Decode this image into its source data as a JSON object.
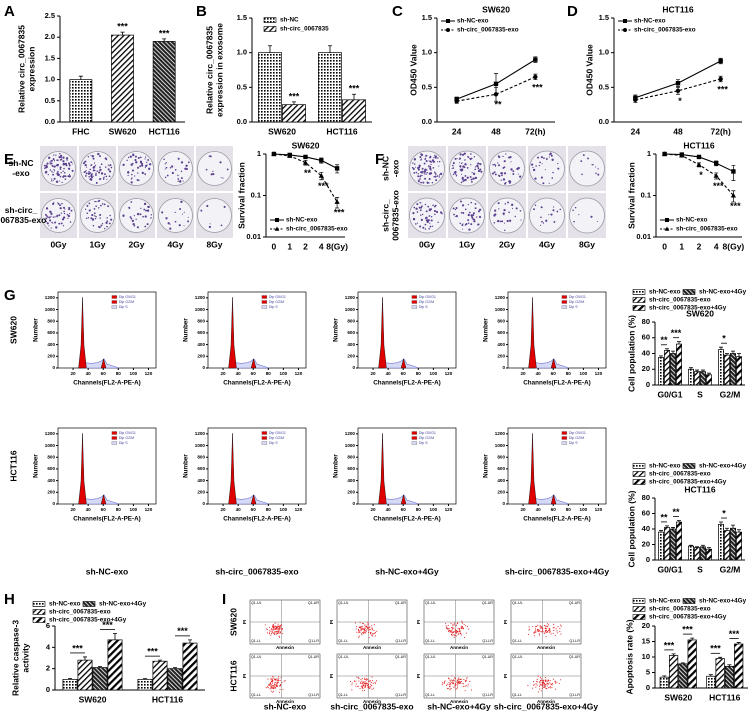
{
  "chart_data": [
    {
      "type": "bar",
      "panel_label": "A",
      "ylabel": [
        "Relative circ_0067835",
        "expression"
      ],
      "categories": [
        "FHC",
        "SW620",
        "HCT116"
      ],
      "series": [
        {
          "values": [
            1.0,
            2.05,
            1.9
          ],
          "errors": [
            0.08,
            0.07,
            0.06
          ],
          "color": "#000000",
          "pattern": [
            "dots",
            "hatch",
            "dense"
          ],
          "significance": [
            null,
            "***",
            "***"
          ]
        }
      ],
      "ylim": [
        0,
        2.5
      ],
      "yticks": [
        {
          "value": 0,
          "label": "0.0"
        },
        {
          "value": 0.5,
          "label": "0.5"
        },
        {
          "value": 1,
          "label": "1.0"
        },
        {
          "value": 1.5,
          "label": "1.5"
        },
        {
          "value": 2,
          "label": "2.0"
        },
        {
          "value": 2.5,
          "label": "2.5"
        }
      ]
    },
    {
      "type": "bar",
      "panel_label": "B",
      "ylabel": [
        "Relative circ_0067835",
        "expression in exosome"
      ],
      "categories": [
        "SW620",
        "HCT116"
      ],
      "series": [
        {
          "name": "sh-NC",
          "values": [
            1.0,
            1.0
          ],
          "errors": [
            0.1,
            0.1
          ],
          "color": "#000000",
          "pattern": "dots",
          "significance": [
            null,
            null
          ]
        },
        {
          "name": "sh-circ_0067835",
          "values": [
            0.25,
            0.32
          ],
          "errors": [
            0.04,
            0.08
          ],
          "color": "#000000",
          "pattern": "hatch",
          "significance": [
            "***",
            "***"
          ]
        }
      ],
      "legend": "upper right",
      "ylim": [
        0,
        1.5
      ],
      "yticks": [
        {
          "value": 0,
          "label": "0.0"
        },
        {
          "value": 0.5,
          "label": "0.5"
        },
        {
          "value": 1,
          "label": "1.0"
        },
        {
          "value": 1.5,
          "label": "1.5"
        }
      ]
    },
    {
      "type": "line",
      "panel_label": "C",
      "title": "SW620",
      "ylabel": [
        "OD450 Value"
      ],
      "categories": [
        "24",
        "48",
        "72(h)"
      ],
      "series": [
        {
          "name": "sh-NC-exo",
          "values": [
            0.33,
            0.55,
            0.9
          ],
          "errors": [
            0.03,
            0.15,
            0.04
          ],
          "color": "#000000",
          "marker": "square",
          "dash": false,
          "significance": [
            null,
            null,
            null
          ]
        },
        {
          "name": "sh-circ_0067835-exo",
          "values": [
            0.3,
            0.4,
            0.65
          ],
          "errors": [
            0.03,
            0.1,
            0.04
          ],
          "color": "#000000",
          "marker": "circle",
          "dash": true,
          "significance": [
            null,
            "**",
            "***"
          ]
        }
      ],
      "legend": "upper left",
      "ylim": [
        0,
        1.5
      ],
      "yticks": [
        {
          "value": 0,
          "label": "0.0"
        },
        {
          "value": 0.5,
          "label": "0.5"
        },
        {
          "value": 1,
          "label": "1.0"
        },
        {
          "value": 1.5,
          "label": "1.5"
        }
      ]
    },
    {
      "type": "line",
      "panel_label": "D",
      "title": "HCT116",
      "ylabel": [
        "OD450 Value"
      ],
      "categories": [
        "24",
        "48",
        "72(h)"
      ],
      "series": [
        {
          "name": "sh-NC-exo",
          "values": [
            0.35,
            0.56,
            0.88
          ],
          "errors": [
            0.04,
            0.05,
            0.04
          ],
          "color": "#000000",
          "marker": "square",
          "dash": false,
          "significance": [
            null,
            null,
            null
          ]
        },
        {
          "name": "sh-circ_0067835-exo",
          "values": [
            0.32,
            0.45,
            0.62
          ],
          "errors": [
            0.04,
            0.05,
            0.04
          ],
          "color": "#000000",
          "marker": "circle",
          "dash": true,
          "significance": [
            null,
            "*",
            "***"
          ]
        }
      ],
      "legend": "upper left",
      "ylim": [
        0,
        1.5
      ],
      "yticks": [
        {
          "value": 0,
          "label": "0.0"
        },
        {
          "value": 0.5,
          "label": "0.5"
        },
        {
          "value": 1,
          "label": "1.0"
        },
        {
          "value": 1.5,
          "label": "1.5"
        }
      ]
    },
    {
      "type": "line",
      "panel_label": "E",
      "title": "SW620",
      "ylabel": [
        "Survival fraction"
      ],
      "log": true,
      "categories": [
        "0",
        "1",
        "2",
        "4",
        "8(Gy)"
      ],
      "series": [
        {
          "name": "sh-NC-exo",
          "values": [
            1,
            0.95,
            0.85,
            0.7,
            0.45
          ],
          "errors": [
            0,
            0.04,
            0.06,
            0.1,
            0.1
          ],
          "color": "#000000",
          "marker": "square",
          "dash": false,
          "significance": [
            null,
            null,
            null,
            null,
            null
          ]
        },
        {
          "name": "sh-circ_0067835-exo",
          "values": [
            1,
            0.9,
            0.62,
            0.3,
            0.07
          ],
          "errors": [
            0,
            0.05,
            0.08,
            0.06,
            0.02
          ],
          "color": "#000000",
          "marker": "triangle",
          "dash": true,
          "significance": [
            null,
            null,
            "**",
            "***",
            "***"
          ]
        }
      ],
      "legend": "lower left",
      "ylim": [
        0.01,
        1
      ],
      "yticks": [
        0.01,
        0.1,
        1
      ]
    },
    {
      "type": "line",
      "panel_label": "F",
      "title": "HCT116",
      "ylabel": [
        "Survival fraction"
      ],
      "log": true,
      "categories": [
        "0",
        "1",
        "2",
        "4",
        "8(Gy)"
      ],
      "series": [
        {
          "name": "sh-NC-exo",
          "values": [
            1,
            0.97,
            0.85,
            0.6,
            0.38
          ],
          "errors": [
            0,
            0.03,
            0.05,
            0.08,
            0.15
          ],
          "color": "#000000",
          "marker": "square",
          "dash": false,
          "significance": [
            null,
            null,
            null,
            null,
            null
          ]
        },
        {
          "name": "sh-circ_0067835-exo",
          "values": [
            1,
            0.92,
            0.55,
            0.3,
            0.1
          ],
          "errors": [
            0,
            0.04,
            0.06,
            0.05,
            0.03
          ],
          "color": "#000000",
          "marker": "triangle",
          "dash": true,
          "significance": [
            null,
            null,
            "*",
            "***",
            "***"
          ]
        }
      ],
      "legend": "lower left",
      "ylim": [
        0.01,
        1
      ],
      "yticks": [
        0.01,
        0.1,
        1
      ]
    },
    {
      "type": "bar",
      "panel_label": "G",
      "title": "SW620",
      "ylabel": [
        "Cell population (%)"
      ],
      "categories": [
        "G0/G1",
        "S",
        "G2/M"
      ],
      "series": [
        {
          "name": "sh-NC-exo",
          "values": [
            35,
            20,
            45
          ],
          "errors": [
            2,
            2,
            3
          ],
          "color": "#000000",
          "pattern": "dots",
          "significance": [
            null,
            null,
            null
          ]
        },
        {
          "name": "sh-circ_0067835-exo",
          "values": [
            44,
            17,
            38
          ],
          "errors": [
            2,
            2,
            2
          ],
          "color": "#000000",
          "pattern": "hatch",
          "significance": [
            "**",
            null,
            "*"
          ]
        },
        {
          "name": "sh-NC-exo+4Gy",
          "values": [
            40,
            17,
            40
          ],
          "errors": [
            3,
            2,
            3
          ],
          "color": "#000000",
          "pattern": "dense",
          "significance": [
            null,
            null,
            null
          ]
        },
        {
          "name": "sh-circ_0067835-exo+4Gy",
          "values": [
            52,
            13,
            36
          ],
          "errors": [
            3,
            2,
            4
          ],
          "color": "#000000",
          "pattern": "hatch2",
          "significance": [
            "***",
            null,
            null
          ]
        }
      ],
      "legend": "top",
      "brackets": true,
      "ylim": [
        0,
        80
      ],
      "yticks": [
        0,
        20,
        40,
        60,
        80
      ]
    },
    {
      "type": "bar",
      "title": "HCT116",
      "ylabel": [
        "Cell population (%)"
      ],
      "categories": [
        "G0/G1",
        "S",
        "G2/M"
      ],
      "series": [
        {
          "name": "sh-NC-exo",
          "values": [
            36,
            18,
            46
          ],
          "errors": [
            2,
            1,
            3
          ],
          "color": "#000000",
          "pattern": "dots",
          "significance": [
            null,
            null,
            null
          ]
        },
        {
          "name": "sh-circ_0067835-exo",
          "values": [
            42,
            16,
            38
          ],
          "errors": [
            2,
            1,
            3
          ],
          "color": "#000000",
          "pattern": "hatch",
          "significance": [
            "**",
            null,
            "*"
          ]
        },
        {
          "name": "sh-NC-exo+4Gy",
          "values": [
            40,
            17,
            41
          ],
          "errors": [
            2,
            2,
            4
          ],
          "color": "#000000",
          "pattern": "dense",
          "significance": [
            null,
            null,
            null
          ]
        },
        {
          "name": "sh-circ_0067835-exo+4Gy",
          "values": [
            49,
            14,
            36
          ],
          "errors": [
            2,
            2,
            3
          ],
          "color": "#000000",
          "pattern": "hatch2",
          "significance": [
            "**",
            null,
            null
          ]
        }
      ],
      "legend": "top",
      "brackets": true,
      "ylim": [
        0,
        80
      ],
      "yticks": [
        0,
        20,
        40,
        60,
        80
      ]
    },
    {
      "type": "bar",
      "panel_label": "H",
      "ylabel": [
        "Relative caspase-3",
        "activity"
      ],
      "categories": [
        "SW620",
        "HCT116"
      ],
      "series": [
        {
          "name": "sh-NC-exo",
          "values": [
            1.0,
            1.0
          ],
          "errors": [
            0.08,
            0.06
          ],
          "color": "#000000",
          "pattern": "dots",
          "significance": [
            null,
            null
          ]
        },
        {
          "name": "sh-circ_0067835-exo",
          "values": [
            2.8,
            2.7
          ],
          "errors": [
            0.3,
            0.1
          ],
          "color": "#000000",
          "pattern": "hatch",
          "significance": [
            "***",
            "***"
          ]
        },
        {
          "name": "sh-NC-exo+4Gy",
          "values": [
            2.1,
            2.0
          ],
          "errors": [
            0.1,
            0.1
          ],
          "color": "#000000",
          "pattern": "dense",
          "significance": [
            null,
            null
          ]
        },
        {
          "name": "sh-circ_0067835-exo+4Gy",
          "values": [
            4.7,
            4.4
          ],
          "errors": [
            0.6,
            0.3
          ],
          "color": "#000000",
          "pattern": "hatch2",
          "significance": [
            "***",
            "***"
          ]
        }
      ],
      "legend": "top",
      "brackets": true,
      "ylim": [
        0,
        6
      ],
      "yticks": [
        0,
        2,
        4,
        6
      ]
    },
    {
      "type": "bar",
      "panel_label": "I",
      "ylabel": [
        "Apoptosis rate (%)"
      ],
      "categories": [
        "SW620",
        "HCT116"
      ],
      "series": [
        {
          "name": "sh-NC-exo",
          "values": [
            3.5,
            3.8
          ],
          "errors": [
            0.4,
            0.5
          ],
          "color": "#000000",
          "pattern": "dots",
          "significance": [
            null,
            null
          ]
        },
        {
          "name": "sh-circ_0067835-exo",
          "values": [
            10.5,
            9.5
          ],
          "errors": [
            0.5,
            0.4
          ],
          "color": "#000000",
          "pattern": "hatch",
          "significance": [
            "***",
            "***"
          ]
        },
        {
          "name": "sh-NC-exo+4Gy",
          "values": [
            7.8,
            7.0
          ],
          "errors": [
            0.3,
            0.5
          ],
          "color": "#000000",
          "pattern": "dense",
          "significance": [
            null,
            null
          ]
        },
        {
          "name": "sh-circ_0067835-exo+4Gy",
          "values": [
            15.5,
            14.2
          ],
          "errors": [
            0.6,
            0.5
          ],
          "color": "#000000",
          "pattern": "hatch2",
          "significance": [
            "***",
            "***"
          ]
        }
      ],
      "legend": "top",
      "brackets": true,
      "ylim": [
        0,
        20
      ],
      "yticks": [
        0,
        5,
        10,
        15,
        20
      ]
    }
  ],
  "colony_assay": {
    "row_labels": [
      [
        "sh-NC",
        "-exo"
      ],
      [
        "sh-circ_",
        "0067835-exo"
      ]
    ],
    "dose_labels": [
      "0Gy",
      "1Gy",
      "2Gy",
      "4Gy",
      "8Gy"
    ]
  },
  "cell_cycle": {
    "row_labels": [
      "SW620",
      "HCT116"
    ],
    "column_labels": [
      "sh-NC-exo",
      "sh-circ_0067835-exo",
      "sh-NC-exo+4Gy",
      "sh-circ_0067835-exo+4Gy"
    ],
    "xlabel": "Channels(FL2-A-PE-A)",
    "ylabel": "Number",
    "xlim": [
      0,
      130
    ],
    "ylim": [
      0,
      1300
    ],
    "xticks": [
      20,
      40,
      60,
      80,
      100,
      120
    ],
    "yticks": [
      0,
      200,
      400,
      600,
      800,
      1000,
      1200
    ],
    "legend": [
      "Dip G0/G1",
      "Dip G2/M",
      "Dip S"
    ]
  },
  "apoptosis": {
    "row_labels": [
      "SW620",
      "HCT116"
    ],
    "column_labels": [
      "sh-NC-exo",
      "sh-circ_0067835-exo",
      "sh-NC-exo+4Gy",
      "sh-circ_0067835-exo+4Gy"
    ],
    "xlabel": "Annexin",
    "ylabel": "PI",
    "quadrants": [
      "Q1-UL",
      "Q1-UR",
      "Q1-LL",
      "Q1-LR"
    ]
  }
}
